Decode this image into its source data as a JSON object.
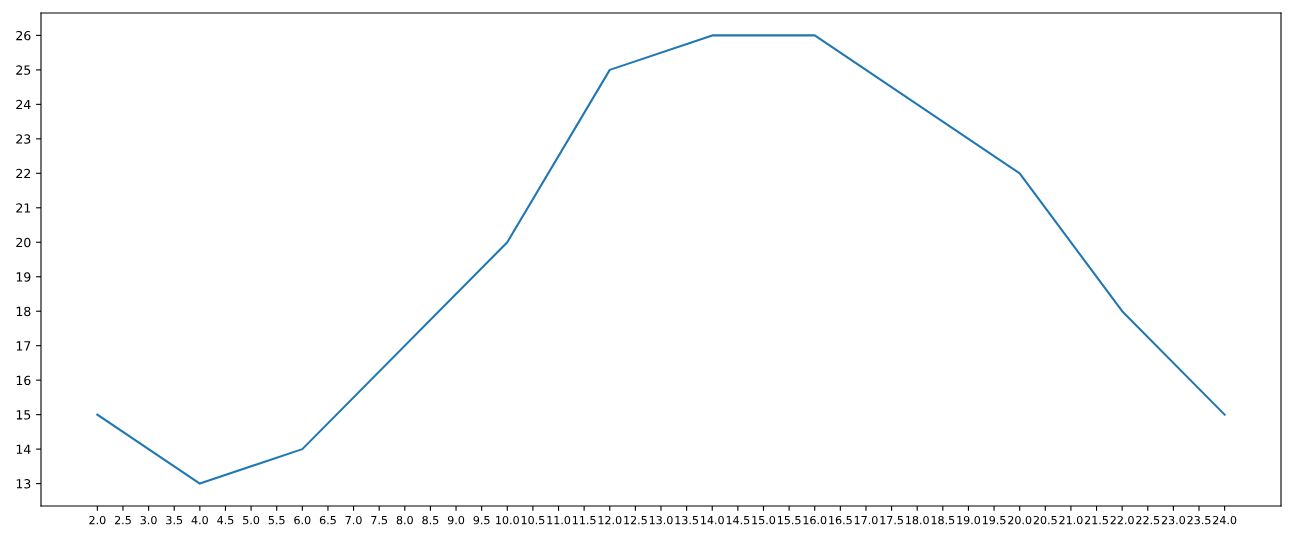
{
  "chart_data": {
    "type": "line",
    "x": [
      2,
      4,
      6,
      10,
      12,
      14,
      16,
      20,
      22,
      24
    ],
    "series": [
      {
        "color": "#1f77b4",
        "values": [
          15,
          13,
          14,
          20,
          25,
          26,
          26,
          22,
          18,
          15
        ]
      }
    ],
    "xlim": [
      0.9,
      25.1
    ],
    "ylim": [
      12.35,
      26.65
    ],
    "xticks": [
      {
        "value": 2,
        "label": "2.0"
      },
      {
        "value": 2.5,
        "label": "2.5"
      },
      {
        "value": 3,
        "label": "3.0"
      },
      {
        "value": 3.5,
        "label": "3.5"
      },
      {
        "value": 4,
        "label": "4.0"
      },
      {
        "value": 4.5,
        "label": "4.5"
      },
      {
        "value": 5,
        "label": "5.0"
      },
      {
        "value": 5.5,
        "label": "5.5"
      },
      {
        "value": 6,
        "label": "6.0"
      },
      {
        "value": 6.5,
        "label": "6.5"
      },
      {
        "value": 7,
        "label": "7.0"
      },
      {
        "value": 7.5,
        "label": "7.5"
      },
      {
        "value": 8,
        "label": "8.0"
      },
      {
        "value": 8.5,
        "label": "8.5"
      },
      {
        "value": 9,
        "label": "9.0"
      },
      {
        "value": 9.5,
        "label": "9.5"
      },
      {
        "value": 10,
        "label": "10.0"
      },
      {
        "value": 10.5,
        "label": "10.5"
      },
      {
        "value": 11,
        "label": "11.0"
      },
      {
        "value": 11.5,
        "label": "11.5"
      },
      {
        "value": 12,
        "label": "12.0"
      },
      {
        "value": 12.5,
        "label": "12.5"
      },
      {
        "value": 13,
        "label": "13.0"
      },
      {
        "value": 13.5,
        "label": "13.5"
      },
      {
        "value": 14,
        "label": "14.0"
      },
      {
        "value": 14.5,
        "label": "14.5"
      },
      {
        "value": 15,
        "label": "15.0"
      },
      {
        "value": 15.5,
        "label": "15.5"
      },
      {
        "value": 16,
        "label": "16.0"
      },
      {
        "value": 16.5,
        "label": "16.5"
      },
      {
        "value": 17,
        "label": "17.0"
      },
      {
        "value": 17.5,
        "label": "17.5"
      },
      {
        "value": 18,
        "label": "18.0"
      },
      {
        "value": 18.5,
        "label": "18.5"
      },
      {
        "value": 19,
        "label": "19.0"
      },
      {
        "value": 19.5,
        "label": "19.5"
      },
      {
        "value": 20,
        "label": "20.0"
      },
      {
        "value": 20.5,
        "label": "20.5"
      },
      {
        "value": 21,
        "label": "21.0"
      },
      {
        "value": 21.5,
        "label": "21.5"
      },
      {
        "value": 22,
        "label": "22.0"
      },
      {
        "value": 22.5,
        "label": "22.5"
      },
      {
        "value": 23,
        "label": "23.0"
      },
      {
        "value": 23.5,
        "label": "23.5"
      },
      {
        "value": 24,
        "label": "24.0"
      }
    ],
    "yticks": [
      13,
      14,
      15,
      16,
      17,
      18,
      19,
      20,
      21,
      22,
      23,
      24,
      25,
      26
    ],
    "grid": false,
    "marker": "none",
    "line_style": "solid"
  }
}
